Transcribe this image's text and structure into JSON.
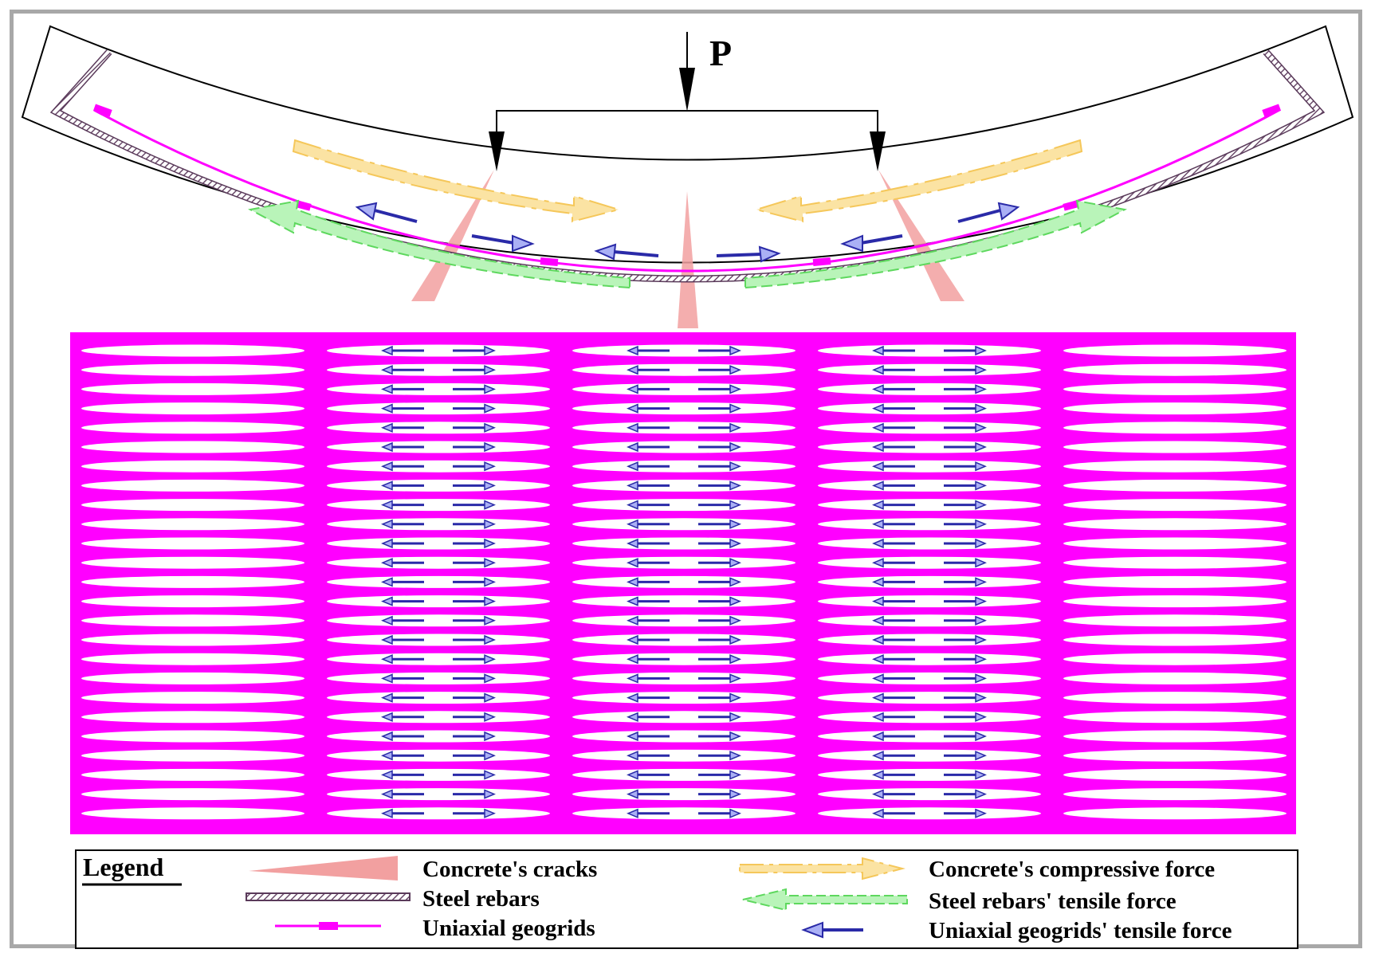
{
  "load": {
    "label": "P"
  },
  "legend": {
    "title": "Legend",
    "items": [
      {
        "key": "cracks",
        "label": "Concrete's cracks"
      },
      {
        "key": "steel",
        "label": "Steel rebars"
      },
      {
        "key": "geogrid",
        "label": "Uniaxial geogrids"
      },
      {
        "key": "compressive",
        "label": "Concrete's compressive force"
      },
      {
        "key": "steel_tension",
        "label": "Steel rebars' tensile force"
      },
      {
        "key": "geogrid_tension",
        "label": "Uniaxial geogrids' tensile force"
      }
    ]
  },
  "geogrid_panel": {
    "columns": 5,
    "rows": 25,
    "arrow_columns": [
      1,
      2,
      3
    ]
  },
  "colors": {
    "frame": "#a8a8a8",
    "geogrid": "#ff00ff",
    "crack": "#f2a0a0",
    "compressive": "#f5c75a",
    "steel_tension": "#6ee66e",
    "geogrid_arrow": "#2a2aa8",
    "geogrid_arrow_fill": "#aab0f5",
    "steel": "#8a6a8a"
  }
}
